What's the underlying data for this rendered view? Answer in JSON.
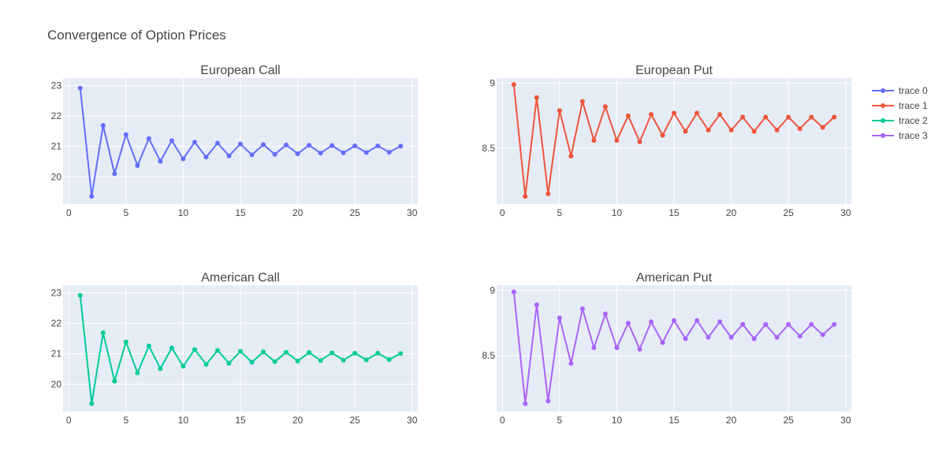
{
  "title": "Convergence of Option Prices",
  "colors": {
    "plot_bg": "#e5ecf6",
    "grid": "#ffffff",
    "trace_0": "#636efa",
    "trace_1": "#ef553b",
    "trace_2": "#00cc96",
    "trace_3": "#ab63fa"
  },
  "legend": {
    "placement": "top-right",
    "items": [
      {
        "label": "trace 0",
        "color": "#636efa"
      },
      {
        "label": "trace 1",
        "color": "#ef553b"
      },
      {
        "label": "trace 2",
        "color": "#00cc96"
      },
      {
        "label": "trace 3",
        "color": "#ab63fa"
      }
    ]
  },
  "chart_data": [
    {
      "type": "line",
      "title": "European Call",
      "xlabel": "",
      "ylabel": "",
      "xlim": [
        -0.5,
        30.5
      ],
      "ylim": [
        19.1,
        23.25
      ],
      "xticks": [
        0,
        5,
        10,
        15,
        20,
        25,
        30
      ],
      "yticks": [
        20,
        21,
        22,
        23
      ],
      "grid": true,
      "series": [
        {
          "name": "trace 0",
          "color": "#636efa",
          "x": [
            1,
            2,
            3,
            4,
            5,
            6,
            7,
            8,
            9,
            10,
            11,
            12,
            13,
            14,
            15,
            16,
            17,
            18,
            19,
            20,
            21,
            22,
            23,
            24,
            25,
            26,
            27,
            28,
            29
          ],
          "y": [
            22.92,
            19.36,
            21.69,
            20.1,
            21.39,
            20.37,
            21.26,
            20.51,
            21.19,
            20.59,
            21.14,
            20.65,
            21.11,
            20.69,
            21.08,
            20.72,
            21.06,
            20.74,
            21.05,
            20.76,
            21.04,
            20.78,
            21.03,
            20.79,
            21.02,
            20.8,
            21.02,
            20.81,
            21.01
          ]
        }
      ]
    },
    {
      "type": "line",
      "title": "European Put",
      "xlabel": "",
      "ylabel": "",
      "xlim": [
        -0.5,
        30.5
      ],
      "ylim": [
        8.07,
        9.04
      ],
      "xticks": [
        0,
        5,
        10,
        15,
        20,
        25,
        30
      ],
      "yticks": [
        8.5,
        9
      ],
      "grid": true,
      "series": [
        {
          "name": "trace 1",
          "color": "#ef553b",
          "x": [
            1,
            2,
            3,
            4,
            5,
            6,
            7,
            8,
            9,
            10,
            11,
            12,
            13,
            14,
            15,
            16,
            17,
            18,
            19,
            20,
            21,
            22,
            23,
            24,
            25,
            26,
            27,
            28,
            29
          ],
          "y": [
            8.99,
            8.13,
            8.89,
            8.15,
            8.79,
            8.44,
            8.86,
            8.56,
            8.82,
            8.56,
            8.75,
            8.55,
            8.76,
            8.6,
            8.77,
            8.63,
            8.77,
            8.64,
            8.76,
            8.64,
            8.74,
            8.63,
            8.74,
            8.64,
            8.74,
            8.65,
            8.74,
            8.66,
            8.74
          ]
        }
      ]
    },
    {
      "type": "line",
      "title": "American Call",
      "xlabel": "",
      "ylabel": "",
      "xlim": [
        -0.5,
        30.5
      ],
      "ylim": [
        19.1,
        23.25
      ],
      "xticks": [
        0,
        5,
        10,
        15,
        20,
        25,
        30
      ],
      "yticks": [
        20,
        21,
        22,
        23
      ],
      "grid": true,
      "series": [
        {
          "name": "trace 2",
          "color": "#00cc96",
          "x": [
            1,
            2,
            3,
            4,
            5,
            6,
            7,
            8,
            9,
            10,
            11,
            12,
            13,
            14,
            15,
            16,
            17,
            18,
            19,
            20,
            21,
            22,
            23,
            24,
            25,
            26,
            27,
            28,
            29
          ],
          "y": [
            22.92,
            19.36,
            21.69,
            20.1,
            21.39,
            20.37,
            21.26,
            20.51,
            21.19,
            20.59,
            21.14,
            20.65,
            21.11,
            20.69,
            21.08,
            20.72,
            21.06,
            20.74,
            21.05,
            20.76,
            21.04,
            20.78,
            21.03,
            20.79,
            21.02,
            20.8,
            21.02,
            20.81,
            21.01
          ]
        }
      ]
    },
    {
      "type": "line",
      "title": "American Put",
      "xlabel": "",
      "ylabel": "",
      "xlim": [
        -0.5,
        30.5
      ],
      "ylim": [
        8.07,
        9.04
      ],
      "xticks": [
        0,
        5,
        10,
        15,
        20,
        25,
        30
      ],
      "yticks": [
        8.5,
        9
      ],
      "grid": true,
      "series": [
        {
          "name": "trace 3",
          "color": "#ab63fa",
          "x": [
            1,
            2,
            3,
            4,
            5,
            6,
            7,
            8,
            9,
            10,
            11,
            12,
            13,
            14,
            15,
            16,
            17,
            18,
            19,
            20,
            21,
            22,
            23,
            24,
            25,
            26,
            27,
            28,
            29
          ],
          "y": [
            8.99,
            8.13,
            8.89,
            8.15,
            8.79,
            8.44,
            8.86,
            8.56,
            8.82,
            8.56,
            8.75,
            8.55,
            8.76,
            8.6,
            8.77,
            8.63,
            8.77,
            8.64,
            8.76,
            8.64,
            8.74,
            8.63,
            8.74,
            8.64,
            8.74,
            8.65,
            8.74,
            8.66,
            8.74
          ]
        }
      ]
    }
  ]
}
